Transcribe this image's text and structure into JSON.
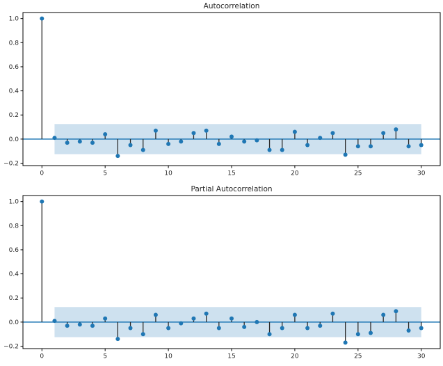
{
  "figure": {
    "background": "#ffffff",
    "accent_color": "#1f77b4",
    "stem_color": "#2b2b2b",
    "band_fill": "#1f77b4",
    "band_opacity": 0.22,
    "spine_color": "#000000",
    "text_color": "#262626"
  },
  "chart_data": [
    {
      "type": "stem",
      "title": "Autocorrelation",
      "xlabel": "",
      "ylabel": "",
      "x": [
        0,
        1,
        2,
        3,
        4,
        5,
        6,
        7,
        8,
        9,
        10,
        11,
        12,
        13,
        14,
        15,
        16,
        17,
        18,
        19,
        20,
        21,
        22,
        23,
        24,
        25,
        26,
        27,
        28,
        29,
        30
      ],
      "values": [
        1.0,
        0.01,
        -0.03,
        -0.02,
        -0.03,
        0.04,
        -0.14,
        -0.05,
        -0.09,
        0.07,
        -0.04,
        -0.02,
        0.05,
        0.07,
        -0.04,
        0.02,
        -0.02,
        -0.01,
        -0.09,
        -0.09,
        0.06,
        -0.05,
        0.01,
        0.05,
        -0.13,
        -0.06,
        -0.06,
        0.05,
        0.08,
        -0.06,
        -0.05
      ],
      "confidence_band": {
        "half_width": 0.125,
        "lag_start": 1,
        "lag_end": 30
      },
      "xlim": [
        -1.5,
        31.5
      ],
      "ylim": [
        -0.22,
        1.05
      ],
      "xticks": [
        0,
        5,
        10,
        15,
        20,
        25,
        30
      ],
      "yticks": [
        "1.0",
        "0.8",
        "0.6",
        "0.4",
        "0.2",
        "0.0",
        "−0.2"
      ],
      "ytick_values": [
        1.0,
        0.8,
        0.6,
        0.4,
        0.2,
        0.0,
        -0.2
      ],
      "grid": false,
      "legend": null
    },
    {
      "type": "stem",
      "title": "Partial Autocorrelation",
      "xlabel": "",
      "ylabel": "",
      "x": [
        0,
        1,
        2,
        3,
        4,
        5,
        6,
        7,
        8,
        9,
        10,
        11,
        12,
        13,
        14,
        15,
        16,
        17,
        18,
        19,
        20,
        21,
        22,
        23,
        24,
        25,
        26,
        27,
        28,
        29,
        30
      ],
      "values": [
        1.0,
        0.01,
        -0.03,
        -0.02,
        -0.03,
        0.03,
        -0.14,
        -0.05,
        -0.1,
        0.06,
        -0.05,
        -0.01,
        0.03,
        0.07,
        -0.05,
        0.03,
        -0.04,
        0.0,
        -0.1,
        -0.05,
        0.06,
        -0.05,
        -0.03,
        0.07,
        -0.17,
        -0.1,
        -0.09,
        0.06,
        0.09,
        -0.07,
        -0.05
      ],
      "confidence_band": {
        "half_width": 0.125,
        "lag_start": 1,
        "lag_end": 30
      },
      "xlim": [
        -1.5,
        31.5
      ],
      "ylim": [
        -0.22,
        1.05
      ],
      "xticks": [
        0,
        5,
        10,
        15,
        20,
        25,
        30
      ],
      "yticks": [
        "1.0",
        "0.8",
        "0.6",
        "0.4",
        "0.2",
        "0.0",
        "−0.2"
      ],
      "ytick_values": [
        1.0,
        0.8,
        0.6,
        0.4,
        0.2,
        0.0,
        -0.2
      ],
      "grid": false,
      "legend": null
    }
  ]
}
